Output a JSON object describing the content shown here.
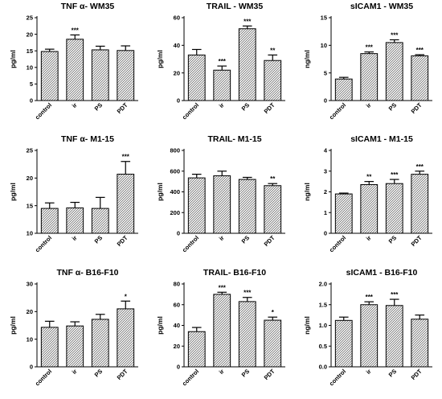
{
  "chart_data": [
    {
      "type": "bar",
      "title": "TNF α- WM35",
      "ylabel": "pg/ml",
      "categories": [
        "control",
        "ir",
        "PS",
        "PDT"
      ],
      "values": [
        14.8,
        18.5,
        15.3,
        15.1
      ],
      "errors": [
        0.7,
        1.3,
        1.1,
        1.4
      ],
      "significance": [
        "",
        "***",
        "",
        ""
      ],
      "ylim": [
        0,
        25
      ],
      "yticks": [
        "0",
        "5",
        "10",
        "15",
        "20",
        "25"
      ]
    },
    {
      "type": "bar",
      "title": "TRAIL - WM35",
      "ylabel": "pg/ml",
      "categories": [
        "control",
        "ir",
        "PS",
        "PDT"
      ],
      "values": [
        33,
        22,
        52,
        29
      ],
      "errors": [
        4,
        3,
        2,
        4
      ],
      "significance": [
        "",
        "***",
        "***",
        "**"
      ],
      "ylim": [
        0,
        60
      ],
      "yticks": [
        "0",
        "20",
        "40",
        "60"
      ]
    },
    {
      "type": "bar",
      "title": "sICAM1 - WM35",
      "ylabel": "ng/ml",
      "categories": [
        "control",
        "ir",
        "PS",
        "PDT"
      ],
      "values": [
        3.9,
        8.5,
        10.5,
        8.1
      ],
      "errors": [
        0.3,
        0.3,
        0.5,
        0.2
      ],
      "significance": [
        "",
        "***",
        "***",
        "***"
      ],
      "ylim": [
        0,
        15
      ],
      "yticks": [
        "0",
        "5",
        "10",
        "15"
      ]
    },
    {
      "type": "bar",
      "title": "TNF α- M1-15",
      "ylabel": "pg/ml",
      "categories": [
        "control",
        "ir",
        "PS",
        "PDT"
      ],
      "values": [
        14.5,
        14.6,
        14.5,
        20.7
      ],
      "errors": [
        1.0,
        1.0,
        2.0,
        2.3
      ],
      "significance": [
        "",
        "",
        "",
        "***"
      ],
      "ylim": [
        10,
        25
      ],
      "yticks": [
        "10",
        "15",
        "20",
        "25"
      ]
    },
    {
      "type": "bar",
      "title": "TRAIL- M1-15",
      "ylabel": "pg/ml",
      "categories": [
        "control",
        "ir",
        "PS",
        "PDT"
      ],
      "values": [
        535,
        555,
        520,
        460
      ],
      "errors": [
        35,
        45,
        20,
        20
      ],
      "significance": [
        "",
        "",
        "",
        "**"
      ],
      "ylim": [
        0,
        800
      ],
      "yticks": [
        "0",
        "200",
        "400",
        "600",
        "800"
      ]
    },
    {
      "type": "bar",
      "title": "sICAM1 - M1-15",
      "ylabel": "ng/ml",
      "categories": [
        "control",
        "ir",
        "PS",
        "PDT"
      ],
      "values": [
        1.9,
        2.35,
        2.4,
        2.85
      ],
      "errors": [
        0.04,
        0.15,
        0.2,
        0.15
      ],
      "significance": [
        "",
        "**",
        "***",
        "***"
      ],
      "ylim": [
        0,
        4
      ],
      "yticks": [
        "0",
        "1",
        "2",
        "3",
        "4"
      ]
    },
    {
      "type": "bar",
      "title": "TNF α- B16-F10",
      "ylabel": "pg/ml",
      "categories": [
        "control",
        "ir",
        "PS",
        "PDT"
      ],
      "values": [
        14.3,
        14.8,
        17.2,
        21.0
      ],
      "errors": [
        2.2,
        1.5,
        1.8,
        2.8
      ],
      "significance": [
        "",
        "",
        "",
        "*"
      ],
      "ylim": [
        0,
        30
      ],
      "yticks": [
        "0",
        "10",
        "20",
        "30"
      ]
    },
    {
      "type": "bar",
      "title": "TRAIL- B16-F10",
      "ylabel": "pg/ml",
      "categories": [
        "control",
        "ir",
        "PS",
        "PDT"
      ],
      "values": [
        34,
        70,
        63,
        45
      ],
      "errors": [
        4,
        2,
        4,
        3
      ],
      "significance": [
        "",
        "***",
        "***",
        "*"
      ],
      "ylim": [
        0,
        80
      ],
      "yticks": [
        "0",
        "20",
        "40",
        "60",
        "80"
      ]
    },
    {
      "type": "bar",
      "title": "sICAM1 - B16-F10",
      "ylabel": "ng/ml",
      "categories": [
        "control",
        "ir",
        "PS",
        "PDT"
      ],
      "values": [
        1.12,
        1.5,
        1.48,
        1.15
      ],
      "errors": [
        0.08,
        0.07,
        0.15,
        0.1
      ],
      "significance": [
        "",
        "***",
        "***",
        ""
      ],
      "ylim": [
        0,
        2.0
      ],
      "yticks": [
        "0.0",
        "0.5",
        "1.0",
        "1.5",
        "2.0"
      ]
    }
  ]
}
